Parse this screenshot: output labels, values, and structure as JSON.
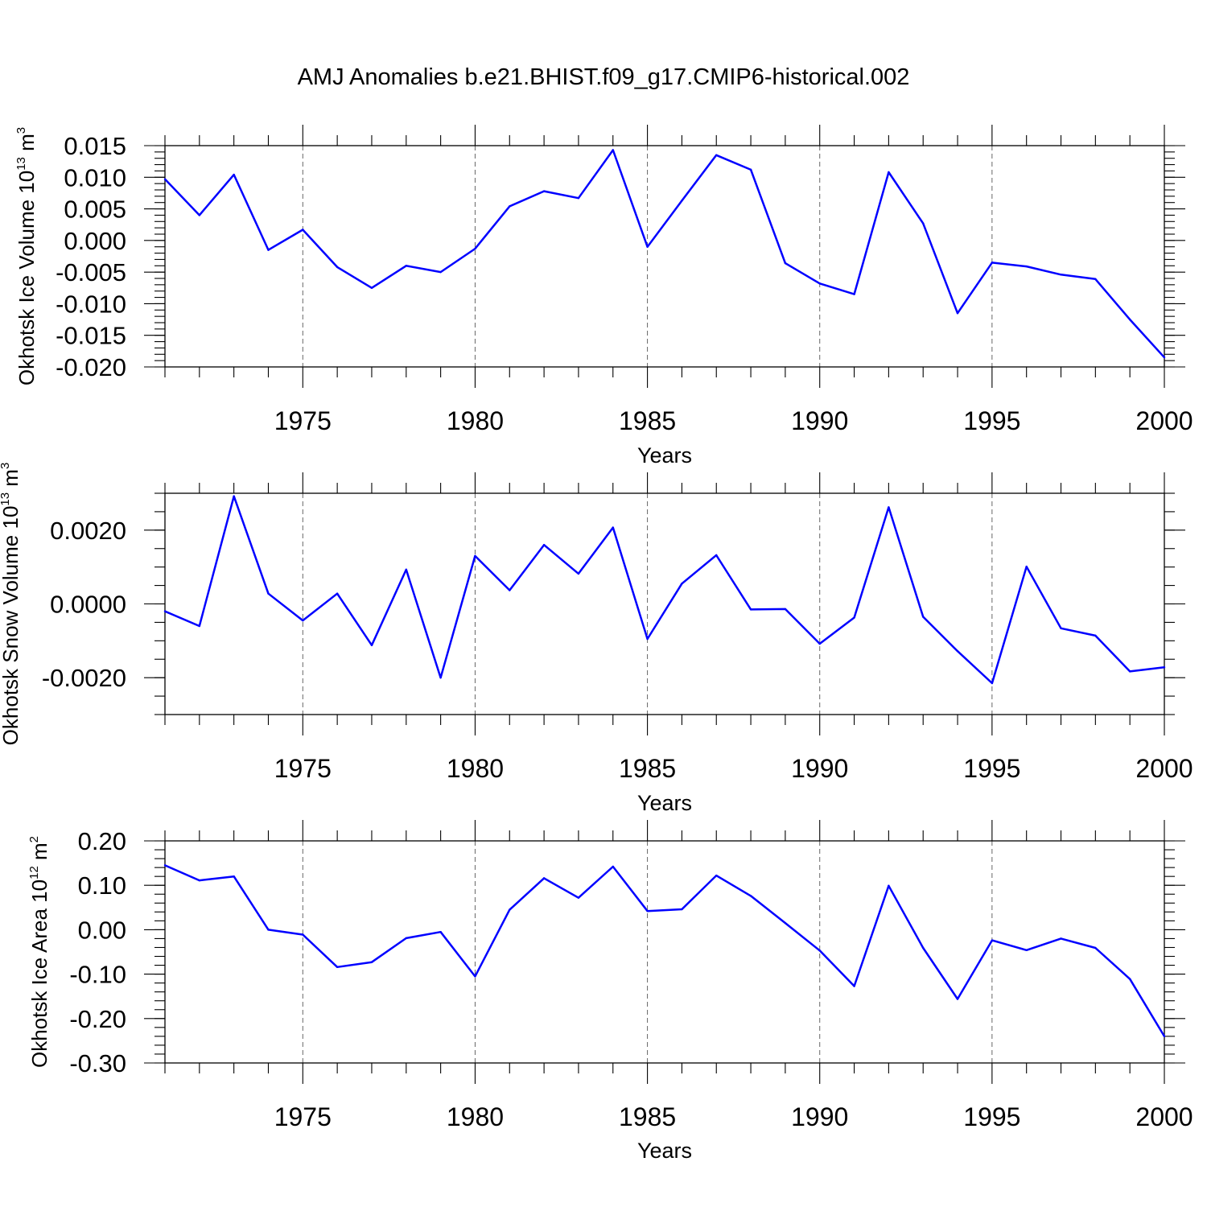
{
  "figure": {
    "title": "AMJ Anomalies b.e21.BHIST.f09_g17.CMIP6-historical.002"
  },
  "colors": {
    "series": "#0000ff",
    "axes": "#000000",
    "grid": "#666666"
  },
  "chart_data": [
    {
      "type": "line",
      "ylabel": "Okhotsk Ice Volume 10",
      "ylabel_exp": "13",
      "ylabel_unit": " m",
      "ylabel_unit_exp": "3",
      "xlabel": "Years",
      "xlim": [
        1971,
        2000
      ],
      "ylim": [
        -0.02,
        0.015
      ],
      "xticks": [
        1975,
        1980,
        1985,
        1990,
        1995,
        2000
      ],
      "xtick_labels": [
        "1975",
        "1980",
        "1985",
        "1990",
        "1995",
        "2000"
      ],
      "yticks": [
        0.015,
        0.01,
        0.005,
        0.0,
        -0.005,
        -0.01,
        -0.015,
        -0.02
      ],
      "ytick_labels": [
        "0.015",
        "0.010",
        "0.005",
        "0.000",
        "-0.005",
        "-0.010",
        "-0.015",
        "-0.020"
      ],
      "ytick_minor_step": 0.001,
      "grid": "dashed vertical at major x ticks",
      "x": [
        1971,
        1972,
        1973,
        1974,
        1975,
        1976,
        1977,
        1978,
        1979,
        1980,
        1981,
        1982,
        1983,
        1984,
        1985,
        1986,
        1987,
        1988,
        1989,
        1990,
        1991,
        1992,
        1993,
        1994,
        1995,
        1996,
        1997,
        1998,
        1999,
        2000
      ],
      "values": [
        0.0097,
        0.004,
        0.0104,
        -0.0015,
        0.0017,
        -0.0042,
        -0.0075,
        -0.004,
        -0.005,
        -0.0013,
        0.0054,
        0.0078,
        0.0067,
        0.0143,
        -0.001,
        0.0063,
        0.0135,
        0.0112,
        -0.0036,
        -0.0068,
        -0.0085,
        0.0108,
        0.0027,
        -0.0115,
        -0.0035,
        -0.0041,
        -0.0054,
        -0.0061,
        -0.0125,
        -0.0185
      ]
    },
    {
      "type": "line",
      "ylabel": "Okhotsk Snow Volume 10",
      "ylabel_exp": "13",
      "ylabel_unit": " m",
      "ylabel_unit_exp": "3",
      "xlabel": "Years",
      "xlim": [
        1971,
        2000
      ],
      "ylim": [
        -0.003,
        0.003
      ],
      "xticks": [
        1975,
        1980,
        1985,
        1990,
        1995,
        2000
      ],
      "xtick_labels": [
        "1975",
        "1980",
        "1985",
        "1990",
        "1995",
        "2000"
      ],
      "yticks": [
        0.002,
        0.0,
        -0.002
      ],
      "ytick_labels": [
        "0.0020",
        "0.0000",
        "-0.0020"
      ],
      "ytick_minor_step": 0.0005,
      "grid": "dashed vertical at major x ticks",
      "x": [
        1971,
        1972,
        1973,
        1974,
        1975,
        1976,
        1977,
        1978,
        1979,
        1980,
        1981,
        1982,
        1983,
        1984,
        1985,
        1986,
        1987,
        1988,
        1989,
        1990,
        1991,
        1992,
        1993,
        1994,
        1995,
        1996,
        1997,
        1998,
        1999,
        2000
      ],
      "values": [
        -0.0002,
        -0.0006,
        0.00292,
        0.00028,
        -0.00045,
        0.00028,
        -0.00112,
        0.00093,
        -0.002,
        0.0013,
        0.00037,
        0.0016,
        0.00082,
        0.00207,
        -0.00095,
        0.00055,
        0.00132,
        -0.00015,
        -0.00014,
        -0.00108,
        -0.00037,
        0.00262,
        -0.00035,
        -0.00128,
        -0.00215,
        0.00101,
        -0.00066,
        -0.00086,
        -0.00183,
        -0.00172
      ]
    },
    {
      "type": "line",
      "ylabel": "Okhotsk Ice Area 10",
      "ylabel_exp": "12",
      "ylabel_unit": " m",
      "ylabel_unit_exp": "2",
      "xlabel": "Years",
      "xlim": [
        1971,
        2000
      ],
      "ylim": [
        -0.3,
        0.2
      ],
      "xticks": [
        1975,
        1980,
        1985,
        1990,
        1995,
        2000
      ],
      "xtick_labels": [
        "1975",
        "1980",
        "1985",
        "1990",
        "1995",
        "2000"
      ],
      "yticks": [
        0.2,
        0.1,
        0.0,
        -0.1,
        -0.2,
        -0.3
      ],
      "ytick_labels": [
        "0.20",
        "0.10",
        "0.00",
        "-0.10",
        "-0.20",
        "-0.30"
      ],
      "ytick_minor_step": 0.02,
      "grid": "dashed vertical at major x ticks",
      "x": [
        1971,
        1972,
        1973,
        1974,
        1975,
        1976,
        1977,
        1978,
        1979,
        1980,
        1981,
        1982,
        1983,
        1984,
        1985,
        1986,
        1987,
        1988,
        1989,
        1990,
        1991,
        1992,
        1993,
        1994,
        1995,
        1996,
        1997,
        1998,
        1999,
        2000
      ],
      "values": [
        0.145,
        0.111,
        0.12,
        0.0,
        -0.011,
        -0.084,
        -0.073,
        -0.019,
        -0.005,
        -0.105,
        0.045,
        0.116,
        0.072,
        0.142,
        0.042,
        0.046,
        0.122,
        0.076,
        0.015,
        -0.047,
        -0.127,
        0.099,
        -0.041,
        -0.156,
        -0.024,
        -0.046,
        -0.02,
        -0.041,
        -0.111,
        -0.24
      ]
    }
  ]
}
